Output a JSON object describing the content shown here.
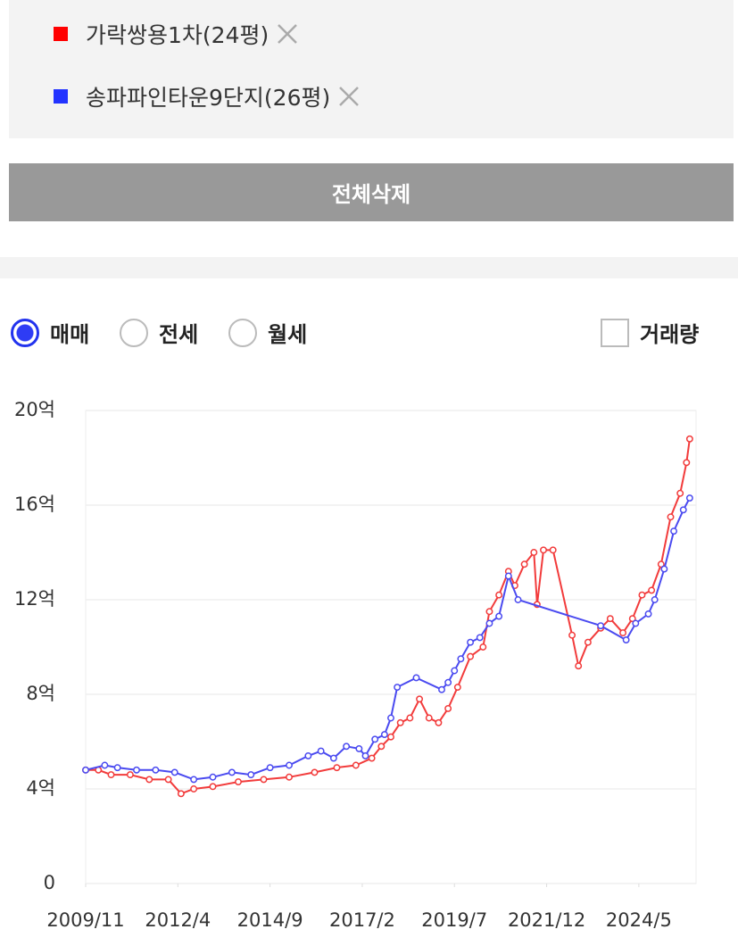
{
  "buttons": {
    "delete_all": "전체삭제"
  },
  "trade_types": [
    "매매",
    "전세",
    "월세"
  ],
  "volume_toggle": "거래량",
  "chart_data": {
    "type": "line",
    "series": [
      {
        "name": "가락쌍용1차(24평)",
        "color": "#f23b3b",
        "x": [
          "2009/11",
          "2010/3",
          "2010/7",
          "2011/1",
          "2011/7",
          "2012/1",
          "2012/5",
          "2012/9",
          "2013/3",
          "2013/11",
          "2014/7",
          "2015/3",
          "2015/11",
          "2016/6",
          "2016/12",
          "2017/5",
          "2017/8",
          "2017/11",
          "2018/2",
          "2018/5",
          "2018/8",
          "2018/11",
          "2019/2",
          "2019/5",
          "2019/8",
          "2019/12",
          "2020/4",
          "2020/6",
          "2020/9",
          "2020/12",
          "2021/2",
          "2021/5",
          "2021/8",
          "2021/9",
          "2021/11",
          "2022/2",
          "2022/8",
          "2022/10",
          "2023/1",
          "2023/5",
          "2023/8",
          "2023/12",
          "2024/3",
          "2024/6",
          "2024/9",
          "2024/12",
          "2025/3",
          "2025/6",
          "2025/8",
          "2025/9"
        ],
        "values": [
          4.8,
          4.8,
          4.6,
          4.6,
          4.4,
          4.4,
          3.8,
          4.0,
          4.1,
          4.3,
          4.4,
          4.5,
          4.7,
          4.9,
          5.0,
          5.3,
          5.8,
          6.2,
          6.8,
          7.0,
          7.8,
          7.0,
          6.8,
          7.4,
          8.3,
          9.6,
          10.0,
          11.5,
          12.2,
          13.2,
          12.6,
          13.5,
          14.0,
          11.8,
          14.1,
          14.1,
          10.5,
          9.2,
          10.2,
          10.8,
          11.2,
          10.6,
          11.2,
          12.2,
          12.4,
          13.5,
          15.5,
          16.5,
          17.8,
          18.8
        ]
      },
      {
        "name": "송파파인타운9단지(26평)",
        "color": "#4a4af0",
        "x": [
          "2009/11",
          "2010/5",
          "2010/9",
          "2011/3",
          "2011/9",
          "2012/3",
          "2012/9",
          "2013/3",
          "2013/9",
          "2014/3",
          "2014/9",
          "2015/3",
          "2015/9",
          "2016/1",
          "2016/5",
          "2016/9",
          "2017/1",
          "2017/3",
          "2017/6",
          "2017/9",
          "2017/11",
          "2018/1",
          "2018/7",
          "2019/3",
          "2019/5",
          "2019/7",
          "2019/9",
          "2019/12",
          "2020/3",
          "2020/6",
          "2020/9",
          "2020/12",
          "2021/3",
          "2023/5",
          "2024/1",
          "2024/4",
          "2024/8",
          "2024/10",
          "2025/1",
          "2025/4",
          "2025/7",
          "2025/9"
        ],
        "values": [
          4.8,
          5.0,
          4.9,
          4.8,
          4.8,
          4.7,
          4.4,
          4.5,
          4.7,
          4.6,
          4.9,
          5.0,
          5.4,
          5.6,
          5.3,
          5.8,
          5.7,
          5.4,
          6.1,
          6.3,
          7.0,
          8.3,
          8.7,
          8.2,
          8.5,
          9.0,
          9.5,
          10.2,
          10.4,
          11.0,
          11.3,
          13.0,
          12.0,
          10.9,
          10.3,
          11.0,
          11.4,
          12.0,
          13.3,
          14.9,
          15.8,
          16.3
        ]
      }
    ],
    "xlim": [
      "2009/11",
      "2025/11"
    ],
    "xticks": [
      "2009/11",
      "2012/4",
      "2014/9",
      "2017/2",
      "2019/7",
      "2021/12",
      "2024/5"
    ],
    "ylim": [
      0,
      20
    ],
    "yticks": [
      0,
      {
        "value": 4,
        "label": "4억"
      },
      {
        "value": 8,
        "label": "8억"
      },
      {
        "value": 12,
        "label": "12억"
      },
      {
        "value": 16,
        "label": "16억"
      },
      {
        "value": 20,
        "label": "20억"
      }
    ],
    "grid": true
  }
}
